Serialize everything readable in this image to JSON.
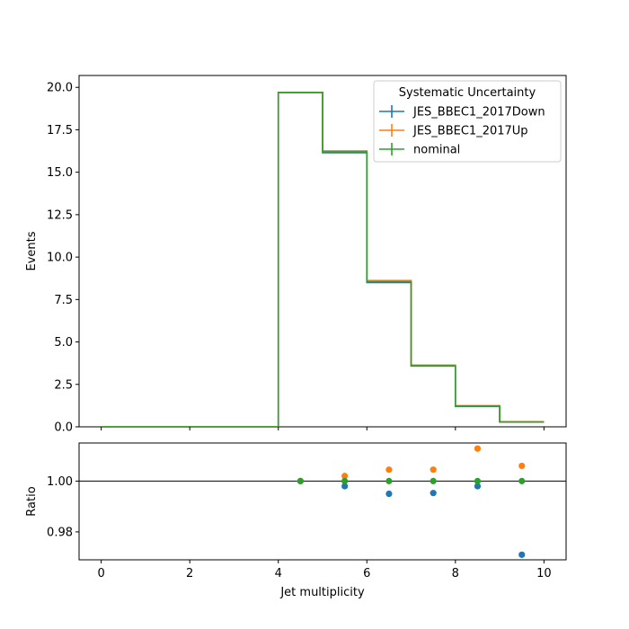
{
  "chart_data": [
    {
      "type": "line",
      "panel": "main",
      "title": "",
      "xlabel": "",
      "ylabel": "Events",
      "xlim": [
        -0.5,
        10.5
      ],
      "ylim": [
        0,
        20.7
      ],
      "bin_edges": [
        0,
        1,
        2,
        3,
        4,
        5,
        6,
        7,
        8,
        9,
        10
      ],
      "xticks": [
        0,
        2,
        4,
        6,
        8,
        10
      ],
      "yticks": [
        "0.0",
        "2.5",
        "5.0",
        "7.5",
        "10.0",
        "12.5",
        "15.0",
        "17.5",
        "20.0"
      ],
      "legend": {
        "title": "Systematic Uncertainty",
        "position": "top-right"
      },
      "series": [
        {
          "name": "JES_BBEC1_2017Down",
          "color": "#1f77b4",
          "values": [
            0,
            0,
            0,
            0,
            19.7,
            16.15,
            8.5,
            3.58,
            1.2,
            0.28
          ]
        },
        {
          "name": "JES_BBEC1_2017Up",
          "color": "#ff7f0e",
          "values": [
            0,
            0,
            0,
            0,
            19.7,
            16.26,
            8.62,
            3.64,
            1.25,
            0.3
          ]
        },
        {
          "name": "nominal",
          "color": "#2ca02c",
          "values": [
            0,
            0,
            0,
            0,
            19.7,
            16.2,
            8.55,
            3.6,
            1.22,
            0.29
          ]
        }
      ]
    },
    {
      "type": "scatter",
      "panel": "ratio",
      "xlabel": "Jet multiplicity",
      "ylabel": "Ratio",
      "xlim": [
        -0.5,
        10.5
      ],
      "ylim": [
        0.969,
        1.015
      ],
      "xticks": [
        "0",
        "2",
        "4",
        "6",
        "8",
        "10"
      ],
      "yticks": [
        "0.98",
        "1.00"
      ],
      "reference_line": 1.0,
      "x": [
        4.5,
        5.5,
        6.5,
        7.5,
        8.5,
        9.5
      ],
      "series": [
        {
          "name": "JES_BBEC1_2017Down",
          "color": "#1f77b4",
          "values": [
            1.0,
            0.998,
            0.995,
            0.9953,
            0.998,
            0.971
          ]
        },
        {
          "name": "JES_BBEC1_2017Up",
          "color": "#ff7f0e",
          "values": [
            1.0,
            1.002,
            1.0045,
            1.0045,
            1.0128,
            1.006
          ]
        },
        {
          "name": "nominal",
          "color": "#2ca02c",
          "values": [
            1.0,
            1.0,
            1.0,
            1.0,
            1.0,
            1.0
          ]
        }
      ]
    }
  ]
}
